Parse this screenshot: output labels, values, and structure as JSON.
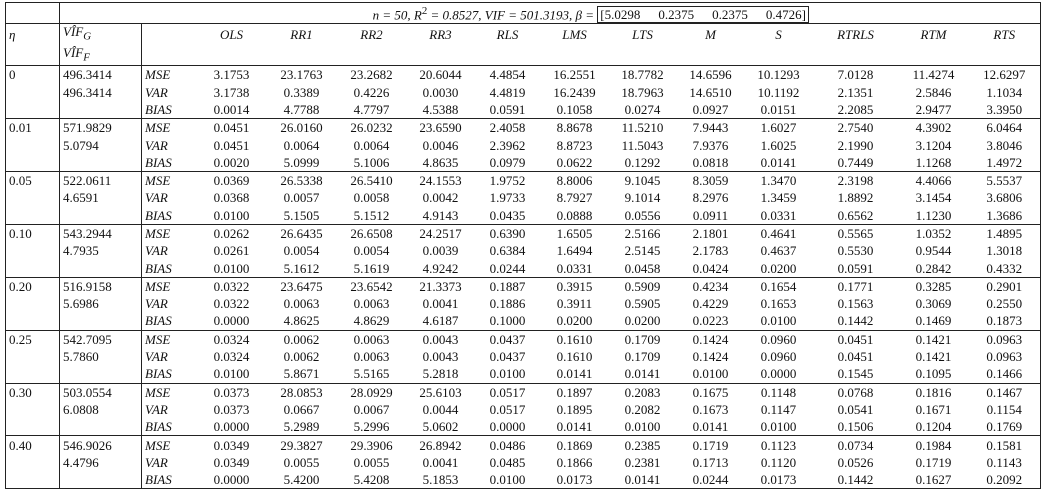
{
  "caption": {
    "lead": "n = 50, R",
    "sup": "2",
    "mid": " = 0.8527, VIF = 501.3193, β = ",
    "open": "[",
    "beta": [
      "5.0298",
      "0.2375",
      "0.2375",
      "0.4726"
    ],
    "close": "]"
  },
  "header": {
    "eta": "η",
    "vif_g": {
      "base": "VÎF",
      "sub": "G"
    },
    "vif_f": {
      "base": "VÎF",
      "sub": "F"
    },
    "methods": [
      "OLS",
      "RR1",
      "RR2",
      "RR3",
      "RLS",
      "LMS",
      "LTS",
      "M",
      "S",
      "RTRLS",
      "RTM",
      "RTS"
    ]
  },
  "groups": [
    {
      "eta": "0",
      "vif_g": "496.3414",
      "vif_f": "496.3414",
      "rows": [
        {
          "label": "MSE",
          "values": [
            "3.1753",
            "23.1763",
            "23.2682",
            "20.6044",
            "4.4854",
            "16.2551",
            "18.7782",
            "14.6596",
            "10.1293",
            "7.0128",
            "11.4274",
            "12.6297"
          ]
        },
        {
          "label": "VAR",
          "values": [
            "3.1738",
            "0.3389",
            "0.4226",
            "0.0030",
            "4.4819",
            "16.2439",
            "18.7963",
            "14.6510",
            "10.1192",
            "2.1351",
            "2.5846",
            "1.1034"
          ]
        },
        {
          "label": "BIAS",
          "values": [
            "0.0014",
            "4.7788",
            "4.7797",
            "4.5388",
            "0.0591",
            "0.1058",
            "0.0274",
            "0.0927",
            "0.0151",
            "2.2085",
            "2.9477",
            "3.3950"
          ]
        }
      ]
    },
    {
      "eta": "0.01",
      "vif_g": "571.9829",
      "vif_f": "5.0794",
      "rows": [
        {
          "label": "MSE",
          "values": [
            "0.0451",
            "26.0160",
            "26.0232",
            "23.6590",
            "2.4058",
            "8.8678",
            "11.5210",
            "7.9443",
            "1.6027",
            "2.7540",
            "4.3902",
            "6.0464"
          ]
        },
        {
          "label": "VAR",
          "values": [
            "0.0451",
            "0.0064",
            "0.0064",
            "0.0046",
            "2.3962",
            "8.8723",
            "11.5043",
            "7.9376",
            "1.6025",
            "2.1990",
            "3.1204",
            "3.8046"
          ]
        },
        {
          "label": "BIAS",
          "values": [
            "0.0020",
            "5.0999",
            "5.1006",
            "4.8635",
            "0.0979",
            "0.0622",
            "0.1292",
            "0.0818",
            "0.0141",
            "0.7449",
            "1.1268",
            "1.4972"
          ]
        }
      ]
    },
    {
      "eta": "0.05",
      "vif_g": "522.0611",
      "vif_f": "4.6591",
      "rows": [
        {
          "label": "MSE",
          "values": [
            "0.0369",
            "26.5338",
            "26.5410",
            "24.1553",
            "1.9752",
            "8.8006",
            "9.1045",
            "8.3059",
            "1.3470",
            "2.3198",
            "4.4066",
            "5.5537"
          ]
        },
        {
          "label": "VAR",
          "values": [
            "0.0368",
            "0.0057",
            "0.0058",
            "0.0042",
            "1.9733",
            "8.7927",
            "9.1014",
            "8.2976",
            "1.3459",
            "1.8892",
            "3.1454",
            "3.6806"
          ]
        },
        {
          "label": "BIAS",
          "values": [
            "0.0100",
            "5.1505",
            "5.1512",
            "4.9143",
            "0.0435",
            "0.0888",
            "0.0556",
            "0.0911",
            "0.0331",
            "0.6562",
            "1.1230",
            "1.3686"
          ]
        }
      ]
    },
    {
      "eta": "0.10",
      "vif_g": "543.2944",
      "vif_f": "4.7935",
      "rows": [
        {
          "label": "MSE",
          "values": [
            "0.0262",
            "26.6435",
            "26.6508",
            "24.2517",
            "0.6390",
            "1.6505",
            "2.5166",
            "2.1801",
            "0.4641",
            "0.5565",
            "1.0352",
            "1.4895"
          ]
        },
        {
          "label": "VAR",
          "values": [
            "0.0261",
            "0.0054",
            "0.0054",
            "0.0039",
            "0.6384",
            "1.6494",
            "2.5145",
            "2.1783",
            "0.4637",
            "0.5530",
            "0.9544",
            "1.3018"
          ]
        },
        {
          "label": "BIAS",
          "values": [
            "0.0100",
            "5.1612",
            "5.1619",
            "4.9242",
            "0.0244",
            "0.0331",
            "0.0458",
            "0.0424",
            "0.0200",
            "0.0591",
            "0.2842",
            "0.4332"
          ]
        }
      ]
    },
    {
      "eta": "0.20",
      "vif_g": "516.9158",
      "vif_f": "5.6986",
      "rows": [
        {
          "label": "MSE",
          "values": [
            "0.0322",
            "23.6475",
            "23.6542",
            "21.3373",
            "0.1887",
            "0.3915",
            "0.5909",
            "0.4234",
            "0.1654",
            "0.1771",
            "0.3285",
            "0.2901"
          ]
        },
        {
          "label": "VAR",
          "values": [
            "0.0322",
            "0.0063",
            "0.0063",
            "0.0041",
            "0.1886",
            "0.3911",
            "0.5905",
            "0.4229",
            "0.1653",
            "0.1563",
            "0.3069",
            "0.2550"
          ]
        },
        {
          "label": "BIAS",
          "values": [
            "0.0000",
            "4.8625",
            "4.8629",
            "4.6187",
            "0.1000",
            "0.0200",
            "0.0200",
            "0.0223",
            "0.0100",
            "0.1442",
            "0.1469",
            "0.1873"
          ]
        }
      ]
    },
    {
      "eta": "0.25",
      "vif_g": "542.7095",
      "vif_f": "5.7860",
      "rows": [
        {
          "label": "MSE",
          "values": [
            "0.0324",
            "0.0062",
            "0.0063",
            "0.0043",
            "0.0437",
            "0.1610",
            "0.1709",
            "0.1424",
            "0.0960",
            "0.0451",
            "0.1421",
            "0.0963"
          ]
        },
        {
          "label": "VAR",
          "values": [
            "0.0324",
            "0.0062",
            "0.0063",
            "0.0043",
            "0.0437",
            "0.1610",
            "0.1709",
            "0.1424",
            "0.0960",
            "0.0451",
            "0.1421",
            "0.0963"
          ]
        },
        {
          "label": "BIAS",
          "values": [
            "0.0100",
            "5.8671",
            "5.5165",
            "5.2818",
            "0.0100",
            "0.0141",
            "0.0141",
            "0.0100",
            "0.0000",
            "0.1545",
            "0.1095",
            "0.1466"
          ]
        }
      ]
    },
    {
      "eta": "0.30",
      "vif_g": "503.0554",
      "vif_f": "6.0808",
      "rows": [
        {
          "label": "MSE",
          "values": [
            "0.0373",
            "28.0853",
            "28.0929",
            "25.6103",
            "0.0517",
            "0.1897",
            "0.2083",
            "0.1675",
            "0.1148",
            "0.0768",
            "0.1816",
            "0.1467"
          ]
        },
        {
          "label": "VAR",
          "values": [
            "0.0373",
            "0.0667",
            "0.0067",
            "0.0044",
            "0.0517",
            "0.1895",
            "0.2082",
            "0.1673",
            "0.1147",
            "0.0541",
            "0.1671",
            "0.1154"
          ]
        },
        {
          "label": "BIAS",
          "values": [
            "0.0000",
            "5.2989",
            "5.2996",
            "5.0602",
            "0.0000",
            "0.0141",
            "0.0100",
            "0.0141",
            "0.0100",
            "0.1506",
            "0.1204",
            "0.1769"
          ]
        }
      ]
    },
    {
      "eta": "0.40",
      "vif_g": "546.9026",
      "vif_f": "4.4796",
      "rows": [
        {
          "label": "MSE",
          "values": [
            "0.0349",
            "29.3827",
            "29.3906",
            "26.8942",
            "0.0486",
            "0.1869",
            "0.2385",
            "0.1719",
            "0.1123",
            "0.0734",
            "0.1984",
            "0.1581"
          ]
        },
        {
          "label": "VAR",
          "values": [
            "0.0349",
            "0.0055",
            "0.0055",
            "0.0041",
            "0.0485",
            "0.1866",
            "0.2381",
            "0.1713",
            "0.1120",
            "0.0526",
            "0.1719",
            "0.1143"
          ]
        },
        {
          "label": "BIAS",
          "values": [
            "0.0000",
            "5.4200",
            "5.4208",
            "5.1853",
            "0.0100",
            "0.0173",
            "0.0141",
            "0.0244",
            "0.0173",
            "0.1442",
            "0.1627",
            "0.2092"
          ]
        }
      ]
    }
  ]
}
